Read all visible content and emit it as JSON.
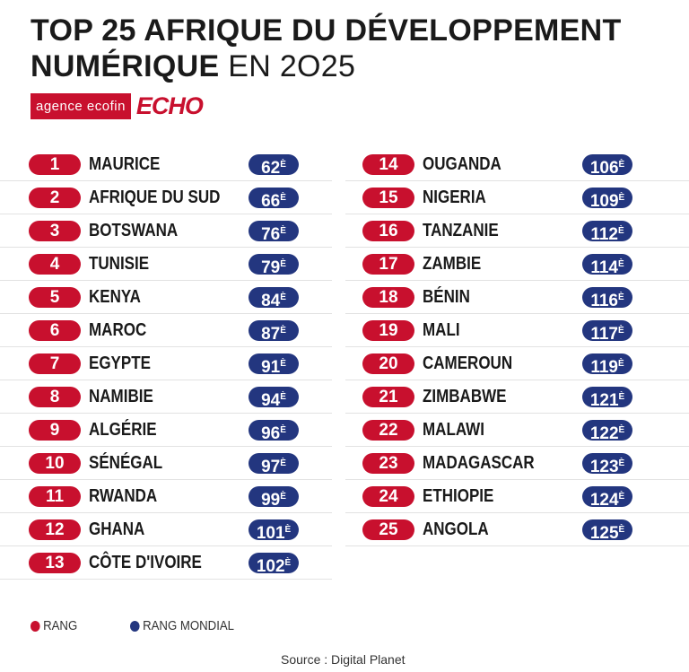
{
  "title": {
    "line1": "TOP 25 AFRIQUE DU DÉVELOPPEMENT",
    "line2_bold": "NUMÉRIQUE",
    "line2_light": "EN 2O25"
  },
  "logo": {
    "agency": "agence ecofin",
    "echo": "ECHO"
  },
  "colors": {
    "rank": "#c8102e",
    "world": "#23367f"
  },
  "rows": [
    {
      "rank": "1",
      "country": "MAURICE",
      "world": "62",
      "suffix": "È"
    },
    {
      "rank": "2",
      "country": "AFRIQUE DU SUD",
      "world": "66",
      "suffix": "È"
    },
    {
      "rank": "3",
      "country": "BOTSWANA",
      "world": "76",
      "suffix": "È"
    },
    {
      "rank": "4",
      "country": "TUNISIE",
      "world": "79",
      "suffix": "È"
    },
    {
      "rank": "5",
      "country": "KENYA",
      "world": "84",
      "suffix": "È"
    },
    {
      "rank": "6",
      "country": "MAROC",
      "world": "87",
      "suffix": "È"
    },
    {
      "rank": "7",
      "country": "EGYPTE",
      "world": "91",
      "suffix": "È"
    },
    {
      "rank": "8",
      "country": "NAMIBIE",
      "world": "94",
      "suffix": "È"
    },
    {
      "rank": "9",
      "country": "ALGÉRIE",
      "world": "96",
      "suffix": "È"
    },
    {
      "rank": "10",
      "country": "SÉNÉGAL",
      "world": "97",
      "suffix": "È"
    },
    {
      "rank": "11",
      "country": "RWANDA",
      "world": "99",
      "suffix": "È"
    },
    {
      "rank": "12",
      "country": "GHANA",
      "world": "101",
      "suffix": "È"
    },
    {
      "rank": "13",
      "country": "CÔTE D'IVOIRE",
      "world": "102",
      "suffix": "È"
    },
    {
      "rank": "14",
      "country": "OUGANDA",
      "world": "106",
      "suffix": "È"
    },
    {
      "rank": "15",
      "country": "NIGERIA",
      "world": "109",
      "suffix": "È"
    },
    {
      "rank": "16",
      "country": "TANZANIE",
      "world": "112",
      "suffix": "È"
    },
    {
      "rank": "17",
      "country": "ZAMBIE",
      "world": "114",
      "suffix": "È"
    },
    {
      "rank": "18",
      "country": "BÉNIN",
      "world": "116",
      "suffix": "È"
    },
    {
      "rank": "19",
      "country": "MALI",
      "world": "117",
      "suffix": "È"
    },
    {
      "rank": "20",
      "country": "CAMEROUN",
      "world": "119",
      "suffix": "È"
    },
    {
      "rank": "21",
      "country": "ZIMBABWE",
      "world": "121",
      "suffix": "È"
    },
    {
      "rank": "22",
      "country": "MALAWI",
      "world": "122",
      "suffix": "È"
    },
    {
      "rank": "23",
      "country": "MADAGASCAR",
      "world": "123",
      "suffix": "È"
    },
    {
      "rank": "24",
      "country": "ETHIOPIE",
      "world": "124",
      "suffix": "È"
    },
    {
      "rank": "25",
      "country": "ANGOLA",
      "world": "125",
      "suffix": "È"
    }
  ],
  "legend": {
    "rank": "RANG",
    "world": "RANG MONDIAL"
  },
  "source": "Source : Digital Planet"
}
